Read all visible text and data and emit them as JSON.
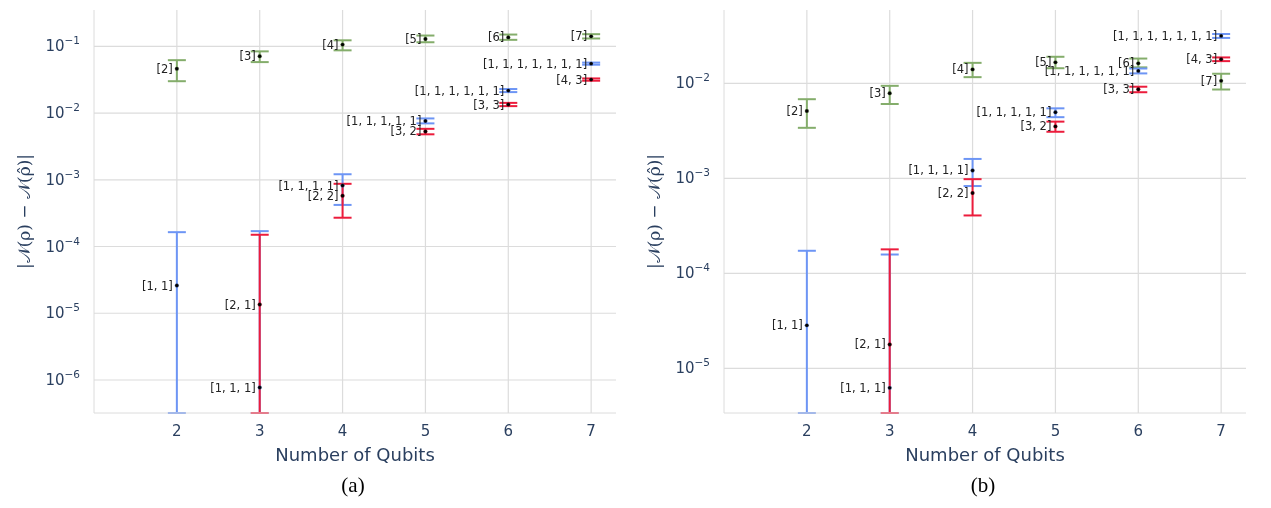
{
  "chart_data": [
    {
      "type": "scatter",
      "xlabel": "Number of Qubits",
      "ylabel": "|𝒩(ρ) − 𝒩(ρ̂)|",
      "log": "y",
      "grid": true,
      "marker": "circle",
      "xlim": [
        1,
        7.3
      ],
      "xticks": [
        2,
        3,
        4,
        5,
        6,
        7
      ],
      "ylim": [
        3.2e-07,
        0.35
      ],
      "yticks": [
        {
          "value": 1e-06,
          "label": "10$^{−6}$"
        },
        {
          "value": 1e-05,
          "label": "10$^{−5}$"
        },
        {
          "value": 0.0001,
          "label": "10$^{−4}$"
        },
        {
          "value": 0.001,
          "label": "10$^{−3}$"
        },
        {
          "value": 0.01,
          "label": "10$^{−2}$"
        },
        {
          "value": 0.1,
          "label": "10$^{−1}$"
        }
      ],
      "series": [
        {
          "color": "#84ad6b",
          "x": [
            2,
            3,
            4,
            5,
            6,
            7
          ],
          "values": [
            0.046,
            0.071,
            0.106,
            0.129,
            0.136,
            0.141
          ],
          "errors": [
            [
              0.03,
              0.062
            ],
            [
              0.058,
              0.084
            ],
            [
              0.087,
              0.123
            ],
            [
              0.115,
              0.145
            ],
            [
              0.125,
              0.15
            ],
            [
              0.131,
              0.152
            ]
          ]
        },
        {
          "color": "#6d95f5",
          "x": [
            2,
            3,
            4,
            5,
            6,
            7
          ],
          "values": [
            2.6e-05,
            7.7e-07,
            0.00082,
            0.0076,
            0.0217,
            0.055
          ],
          "errors": [
            [
              3.2e-07,
              0.000164
            ],
            [
              3.2e-07,
              0.00017
            ],
            [
              0.00042,
              0.00121
            ],
            [
              0.007,
              0.0083
            ],
            [
              0.0206,
              0.0229
            ],
            [
              0.053,
              0.057
            ]
          ]
        },
        {
          "color": "#ec1c3c",
          "x": [
            3,
            4,
            5,
            6,
            7
          ],
          "values": [
            1.35e-05,
            0.000575,
            0.0053,
            0.0134,
            0.0317
          ],
          "errors": [
            [
              3.2e-07,
              0.00015
            ],
            [
              0.00027,
              0.00087
            ],
            [
              0.0048,
              0.0058
            ],
            [
              0.0127,
              0.0142
            ],
            [
              0.0305,
              0.033
            ]
          ]
        }
      ],
      "annotations": [
        "(a)",
        {
          "text": "[2]",
          "x": 2,
          "y": 0.046
        },
        {
          "text": "[3]",
          "x": 3,
          "y": 0.071
        },
        {
          "text": "[4]",
          "x": 4,
          "y": 0.106
        },
        {
          "text": "[5]",
          "x": 5,
          "y": 0.129
        },
        {
          "text": "[6]",
          "x": 6,
          "y": 0.136
        },
        {
          "text": "[7]",
          "x": 7,
          "y": 0.141
        },
        {
          "text": "[1, 1]",
          "x": 2,
          "y": 2.6e-05
        },
        {
          "text": "[1, 1, 1]",
          "x": 3,
          "y": 7.7e-07
        },
        {
          "text": "[1, 1, 1, 1]",
          "x": 4,
          "y": 0.00082
        },
        {
          "text": "[1, 1, 1, 1, 1]",
          "x": 5,
          "y": 0.0076
        },
        {
          "text": "[1, 1, 1, 1, 1, 1]",
          "x": 6,
          "y": 0.0217
        },
        {
          "text": "[1, 1, 1, 1, 1, 1, 1]",
          "x": 7,
          "y": 0.055
        },
        {
          "text": "[2, 1]",
          "x": 3,
          "y": 1.35e-05
        },
        {
          "text": "[2, 2]",
          "x": 4,
          "y": 0.000575
        },
        {
          "text": "[3, 2]",
          "x": 5,
          "y": 0.0053
        },
        {
          "text": "[3, 3]",
          "x": 6,
          "y": 0.0134
        },
        {
          "text": "[4, 3]",
          "x": 7,
          "y": 0.0317
        }
      ]
    },
    {
      "type": "scatter",
      "xlabel": "Number of Qubits",
      "ylabel": "|𝒩(ρ) − 𝒩(ρ̂)|",
      "log": "y",
      "grid": true,
      "marker": "circle",
      "xlim": [
        1,
        7.3
      ],
      "xticks": [
        2,
        3,
        4,
        5,
        6,
        7
      ],
      "ylim": [
        3.4e-06,
        0.059
      ],
      "yticks": [
        {
          "value": 1e-05,
          "label": "10$^{−5}$"
        },
        {
          "value": 0.0001,
          "label": "10$^{−4}$"
        },
        {
          "value": 0.001,
          "label": "10$^{−3}$"
        },
        {
          "value": 0.01,
          "label": "10$^{−2}$"
        }
      ],
      "series": [
        {
          "color": "#84ad6b",
          "x": [
            2,
            3,
            4,
            5,
            6,
            7
          ],
          "values": [
            0.0051,
            0.00785,
            0.014,
            0.0166,
            0.0162,
            0.0106
          ],
          "errors": [
            [
              0.0034,
              0.0068
            ],
            [
              0.00605,
              0.0094
            ],
            [
              0.0116,
              0.0164
            ],
            [
              0.0144,
              0.019
            ],
            [
              0.0147,
              0.0182
            ],
            [
              0.0086,
              0.0126
            ]
          ]
        },
        {
          "color": "#6d95f5",
          "x": [
            2,
            3,
            4,
            5,
            6,
            7
          ],
          "values": [
            2.84e-05,
            6.25e-06,
            0.00121,
            0.00495,
            0.0135,
            0.0315
          ],
          "errors": [
            [
              3.4e-06,
              0.000173
            ],
            [
              3.4e-06,
              0.000158
            ],
            [
              0.00083,
              0.0016
            ],
            [
              0.0044,
              0.00545
            ],
            [
              0.0127,
              0.0143
            ],
            [
              0.03,
              0.033
            ]
          ]
        },
        {
          "color": "#ec1c3c",
          "x": [
            3,
            4,
            5,
            6,
            7
          ],
          "values": [
            1.79e-05,
            0.0007,
            0.00352,
            0.00865,
            0.0179
          ],
          "errors": [
            [
              3.4e-06,
              0.000179
            ],
            [
              0.000407,
              0.00098
            ],
            [
              0.00309,
              0.00395
            ],
            [
              0.00805,
              0.0092
            ],
            [
              0.0171,
              0.0187
            ]
          ]
        }
      ],
      "annotations": [
        "(b)",
        {
          "text": "[2]",
          "x": 2,
          "y": 0.0051
        },
        {
          "text": "[3]",
          "x": 3,
          "y": 0.00785
        },
        {
          "text": "[4]",
          "x": 4,
          "y": 0.014
        },
        {
          "text": "[5]",
          "x": 5,
          "y": 0.0166
        },
        {
          "text": "[6]",
          "x": 6,
          "y": 0.0162
        },
        {
          "text": "[7]",
          "x": 7,
          "y": 0.0106
        },
        {
          "text": "[1, 1]",
          "x": 2,
          "y": 2.84e-05
        },
        {
          "text": "[1, 1, 1]",
          "x": 3,
          "y": 6.25e-06
        },
        {
          "text": "[1, 1, 1, 1]",
          "x": 4,
          "y": 0.00121
        },
        {
          "text": "[1, 1, 1, 1, 1]",
          "x": 5,
          "y": 0.00495
        },
        {
          "text": "[1, 1, 1, 1, 1, 1]",
          "x": 6,
          "y": 0.0135
        },
        {
          "text": "[1, 1, 1, 1, 1, 1, 1]",
          "x": 7,
          "y": 0.0315
        },
        {
          "text": "[2, 1]",
          "x": 3,
          "y": 1.79e-05
        },
        {
          "text": "[2, 2]",
          "x": 4,
          "y": 0.0007
        },
        {
          "text": "[3, 2]",
          "x": 5,
          "y": 0.00352
        },
        {
          "text": "[3, 3]",
          "x": 6,
          "y": 0.00865
        },
        {
          "text": "[4, 3]",
          "x": 7,
          "y": 0.0179
        }
      ]
    }
  ]
}
